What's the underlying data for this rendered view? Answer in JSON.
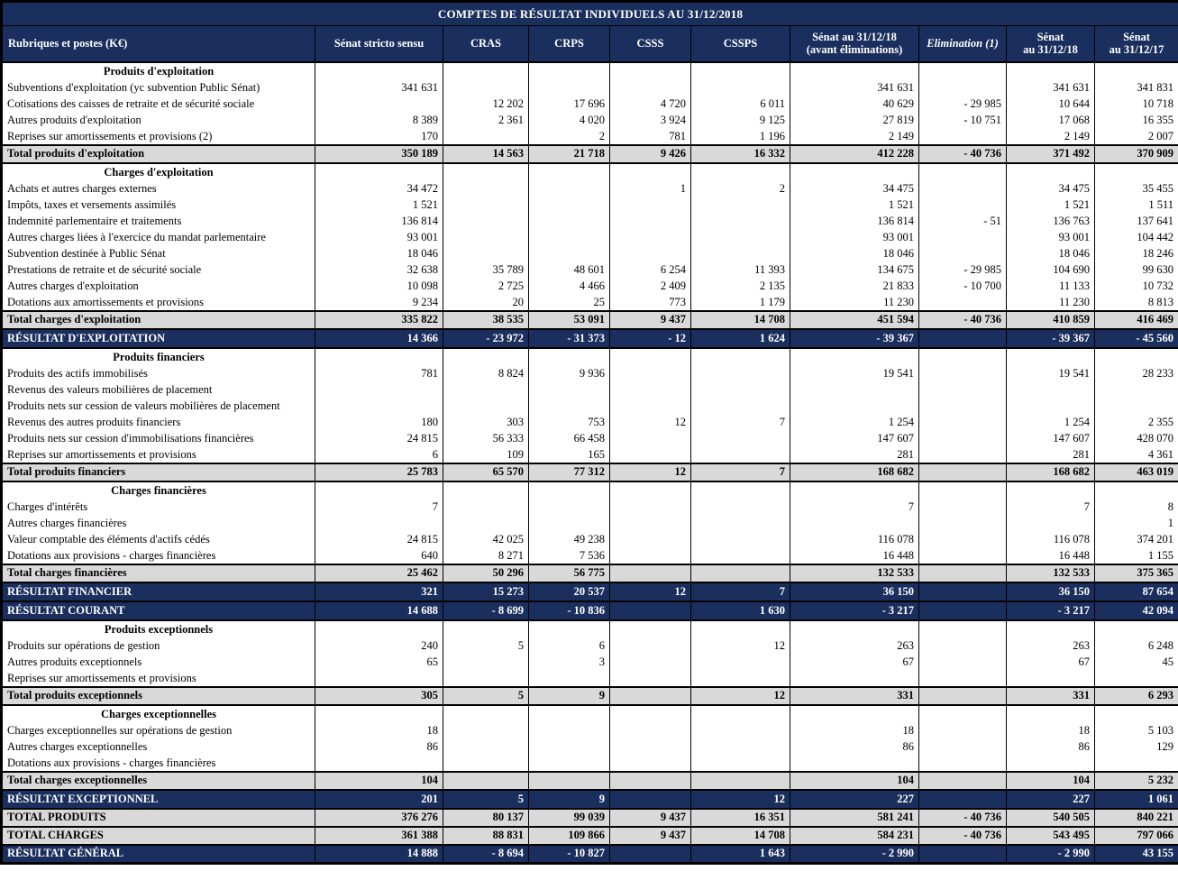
{
  "title": "COMPTES DE RÉSULTAT INDIVIDUELS AU 31/12/2018",
  "colors": {
    "header_navy": "#1B2F5E",
    "total_row_gray": "#D9D9D9",
    "border_black": "#000000",
    "text_white": "#FFFFFF"
  },
  "columns": [
    {
      "line1": "Rubriques et postes (K€)"
    },
    {
      "line1": "Sénat stricto sensu"
    },
    {
      "line1": "CRAS"
    },
    {
      "line1": "CRPS"
    },
    {
      "line1": "CSSS"
    },
    {
      "line1": "CSSPS"
    },
    {
      "line1": "Sénat au 31/12/18",
      "line2": "(avant éliminations)"
    },
    {
      "line1": "Elimination (1)"
    },
    {
      "line1": "Sénat",
      "line2": "au 31/12/18"
    },
    {
      "line1": "Sénat",
      "line2": "au 31/12/17"
    }
  ],
  "rows": [
    {
      "type": "section",
      "label": "Produits d'exploitation"
    },
    {
      "type": "detail",
      "label": "Subventions d'exploitation (yc subvention Public Sénat)",
      "values": [
        "341 631",
        "",
        "",
        "",
        "",
        "341 631",
        "",
        "341 631",
        "341 831"
      ]
    },
    {
      "type": "detail",
      "label": "Cotisations des caisses de retraite et de sécurité sociale",
      "values": [
        "",
        "12 202",
        "17 696",
        "4 720",
        "6 011",
        "40 629",
        "- 29 985",
        "10 644",
        "10 718"
      ]
    },
    {
      "type": "detail",
      "label": "Autres produits d'exploitation",
      "values": [
        "8 389",
        "2 361",
        "4 020",
        "3 924",
        "9 125",
        "27 819",
        "- 10 751",
        "17 068",
        "16 355"
      ]
    },
    {
      "type": "detail",
      "label": "Reprises sur amortissements et provisions (2)",
      "values": [
        "170",
        "",
        "2",
        "781",
        "1 196",
        "2 149",
        "",
        "2 149",
        "2 007"
      ]
    },
    {
      "type": "total",
      "label": "Total produits d'exploitation",
      "values": [
        "350 189",
        "14 563",
        "21 718",
        "9 426",
        "16 332",
        "412 228",
        "- 40 736",
        "371 492",
        "370 909"
      ]
    },
    {
      "type": "section",
      "label": "Charges d'exploitation"
    },
    {
      "type": "detail",
      "label": "Achats et autres charges externes",
      "values": [
        "34 472",
        "",
        "",
        "1",
        "2",
        "34 475",
        "",
        "34 475",
        "35 455"
      ]
    },
    {
      "type": "detail",
      "label": "Impôts, taxes et versements assimilés",
      "values": [
        "1 521",
        "",
        "",
        "",
        "",
        "1 521",
        "",
        "1 521",
        "1 511"
      ]
    },
    {
      "type": "detail",
      "label": "Indemnité parlementaire et traitements",
      "values": [
        "136 814",
        "",
        "",
        "",
        "",
        "136 814",
        "- 51",
        "136 763",
        "137 641"
      ]
    },
    {
      "type": "detail",
      "label": "Autres charges liées à l'exercice du mandat parlementaire",
      "values": [
        "93 001",
        "",
        "",
        "",
        "",
        "93 001",
        "",
        "93 001",
        "104 442"
      ]
    },
    {
      "type": "detail",
      "label": "Subvention destinée à Public Sénat",
      "values": [
        "18 046",
        "",
        "",
        "",
        "",
        "18 046",
        "",
        "18 046",
        "18 246"
      ]
    },
    {
      "type": "detail",
      "label": "Prestations de retraite et de sécurité sociale",
      "values": [
        "32 638",
        "35 789",
        "48 601",
        "6 254",
        "11 393",
        "134 675",
        "- 29 985",
        "104 690",
        "99 630"
      ]
    },
    {
      "type": "detail",
      "label": "Autres charges d'exploitation",
      "values": [
        "10 098",
        "2 725",
        "4 466",
        "2 409",
        "2 135",
        "21 833",
        "- 10 700",
        "11 133",
        "10 732"
      ]
    },
    {
      "type": "detail",
      "label": "Dotations aux amortissements et provisions",
      "values": [
        "9 234",
        "20",
        "25",
        "773",
        "1 179",
        "11 230",
        "",
        "11 230",
        "8 813"
      ]
    },
    {
      "type": "total",
      "label": "Total charges d'exploitation",
      "values": [
        "335 822",
        "38 535",
        "53 091",
        "9 437",
        "14 708",
        "451 594",
        "- 40 736",
        "410 859",
        "416 469"
      ]
    },
    {
      "type": "result",
      "label": "RÉSULTAT D'EXPLOITATION",
      "values": [
        "14 366",
        "- 23 972",
        "- 31 373",
        "- 12",
        "1 624",
        "- 39 367",
        "",
        "- 39 367",
        "- 45 560"
      ]
    },
    {
      "type": "section",
      "label": "Produits financiers"
    },
    {
      "type": "detail",
      "label": "Produits des actifs immobilisés",
      "values": [
        "781",
        "8 824",
        "9 936",
        "",
        "",
        "19 541",
        "",
        "19 541",
        "28 233"
      ]
    },
    {
      "type": "detail",
      "label": "Revenus des valeurs mobilières de placement",
      "values": [
        "",
        "",
        "",
        "",
        "",
        "",
        "",
        "",
        ""
      ]
    },
    {
      "type": "detail",
      "label": "Produits nets sur cession de valeurs mobilières de placement",
      "values": [
        "",
        "",
        "",
        "",
        "",
        "",
        "",
        "",
        ""
      ]
    },
    {
      "type": "detail",
      "label": "Revenus des autres produits financiers",
      "values": [
        "180",
        "303",
        "753",
        "12",
        "7",
        "1 254",
        "",
        "1 254",
        "2 355"
      ]
    },
    {
      "type": "detail",
      "label": "Produits nets sur cession d'immobilisations financières",
      "values": [
        "24 815",
        "56 333",
        "66 458",
        "",
        "",
        "147 607",
        "",
        "147 607",
        "428 070"
      ]
    },
    {
      "type": "detail",
      "label": "Reprises sur amortissements et provisions",
      "values": [
        "6",
        "109",
        "165",
        "",
        "",
        "281",
        "",
        "281",
        "4 361"
      ]
    },
    {
      "type": "total",
      "label": "Total produits financiers",
      "values": [
        "25 783",
        "65 570",
        "77 312",
        "12",
        "7",
        "168 682",
        "",
        "168 682",
        "463 019"
      ]
    },
    {
      "type": "section",
      "label": "Charges financières"
    },
    {
      "type": "detail",
      "label": "Charges d'intérêts",
      "values": [
        "7",
        "",
        "",
        "",
        "",
        "7",
        "",
        "7",
        "8"
      ]
    },
    {
      "type": "detail",
      "label": "Autres charges financières",
      "values": [
        "",
        "",
        "",
        "",
        "",
        "",
        "",
        "",
        "1"
      ]
    },
    {
      "type": "detail",
      "label": "Valeur comptable des éléments d'actifs cédés",
      "values": [
        "24 815",
        "42 025",
        "49 238",
        "",
        "",
        "116 078",
        "",
        "116 078",
        "374 201"
      ]
    },
    {
      "type": "detail",
      "label": "Dotations aux  provisions - charges financières",
      "values": [
        "640",
        "8 271",
        "7 536",
        "",
        "",
        "16 448",
        "",
        "16 448",
        "1 155"
      ]
    },
    {
      "type": "total",
      "label": "Total charges financières",
      "values": [
        "25 462",
        "50 296",
        "56 775",
        "",
        "",
        "132 533",
        "",
        "132 533",
        "375 365"
      ]
    },
    {
      "type": "result",
      "label": "RÉSULTAT FINANCIER",
      "values": [
        "321",
        "15 273",
        "20 537",
        "12",
        "7",
        "36 150",
        "",
        "36 150",
        "87 654"
      ]
    },
    {
      "type": "result",
      "label": "RÉSULTAT COURANT",
      "values": [
        "14 688",
        "- 8 699",
        "- 10 836",
        "",
        "1 630",
        "- 3 217",
        "",
        "- 3 217",
        "42 094"
      ]
    },
    {
      "type": "section",
      "label": "Produits exceptionnels"
    },
    {
      "type": "detail",
      "label": "Produits sur opérations de gestion",
      "values": [
        "240",
        "5",
        "6",
        "",
        "12",
        "263",
        "",
        "263",
        "6 248"
      ]
    },
    {
      "type": "detail",
      "label": "Autres produits exceptionnels",
      "values": [
        "65",
        "",
        "3",
        "",
        "",
        "67",
        "",
        "67",
        "45"
      ]
    },
    {
      "type": "detail",
      "label": "Reprises sur amortissements et provisions",
      "values": [
        "",
        "",
        "",
        "",
        "",
        "",
        "",
        "",
        ""
      ]
    },
    {
      "type": "total",
      "label": "Total produits exceptionnels",
      "values": [
        "305",
        "5",
        "9",
        "",
        "12",
        "331",
        "",
        "331",
        "6 293"
      ]
    },
    {
      "type": "section",
      "label": "Charges exceptionnelles"
    },
    {
      "type": "detail",
      "label": "Charges exceptionnelles sur opérations de gestion",
      "values": [
        "18",
        "",
        "",
        "",
        "",
        "18",
        "",
        "18",
        "5 103"
      ]
    },
    {
      "type": "detail",
      "label": "Autres charges exceptionnelles",
      "values": [
        "86",
        "",
        "",
        "",
        "",
        "86",
        "",
        "86",
        "129"
      ]
    },
    {
      "type": "detail",
      "label": "Dotations aux  provisions - charges financières",
      "values": [
        "",
        "",
        "",
        "",
        "",
        "",
        "",
        "",
        ""
      ]
    },
    {
      "type": "total",
      "label": "Total charges exceptionnelles",
      "values": [
        "104",
        "",
        "",
        "",
        "",
        "104",
        "",
        "104",
        "5 232"
      ]
    },
    {
      "type": "result",
      "label": "RÉSULTAT EXCEPTIONNEL",
      "values": [
        "201",
        "5",
        "9",
        "",
        "12",
        "227",
        "",
        "227",
        "1 061"
      ]
    },
    {
      "type": "grand",
      "label": "TOTAL PRODUITS",
      "values": [
        "376 276",
        "80 137",
        "99 039",
        "9 437",
        "16 351",
        "581 241",
        "- 40 736",
        "540 505",
        "840 221"
      ]
    },
    {
      "type": "grand",
      "label": "TOTAL CHARGES",
      "values": [
        "361 388",
        "88 831",
        "109 866",
        "9 437",
        "14 708",
        "584 231",
        "- 40 736",
        "543 495",
        "797 066"
      ]
    },
    {
      "type": "result",
      "label": "RÉSULTAT GÉNÉRAL",
      "values": [
        "14 888",
        "- 8 694",
        "- 10 827",
        "",
        "1 643",
        "- 2 990",
        "",
        "- 2 990",
        "43 155"
      ]
    }
  ]
}
